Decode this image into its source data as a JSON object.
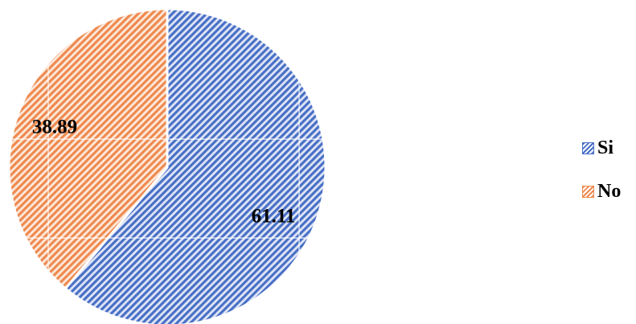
{
  "chart_data": {
    "type": "pie",
    "categories": [
      "Si",
      "No"
    ],
    "values": [
      61.11,
      38.89
    ],
    "data_labels": [
      "61.11",
      "38.89"
    ],
    "colors": [
      "#4a70c6",
      "#ee8a4f"
    ],
    "fill_pattern": "diagonal-stripes",
    "start_angle_deg": 0,
    "direction": "clockwise",
    "grid": true,
    "legend_position": "right"
  }
}
